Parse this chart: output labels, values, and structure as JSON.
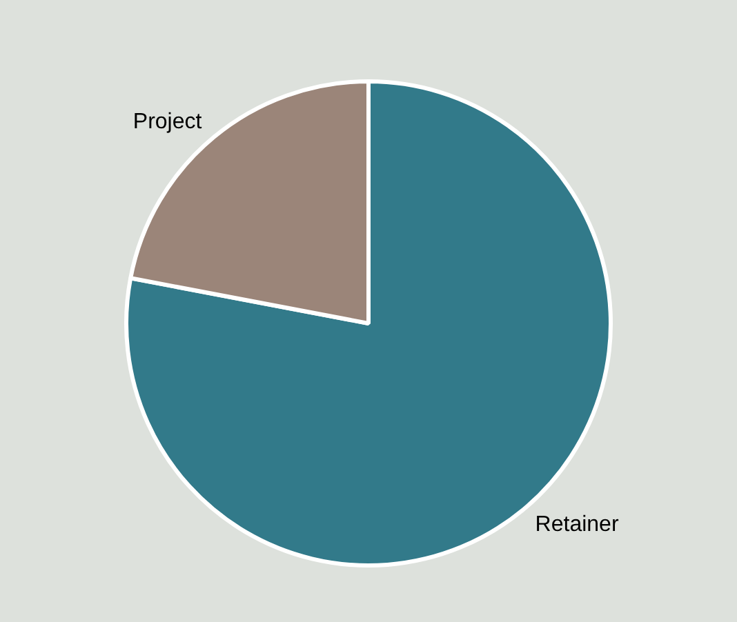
{
  "chart_data": {
    "type": "pie",
    "categories": [
      "Retainer",
      "Project"
    ],
    "values": [
      78,
      22
    ],
    "colors": [
      "#327a8a",
      "#9b8579"
    ],
    "legend": false
  }
}
